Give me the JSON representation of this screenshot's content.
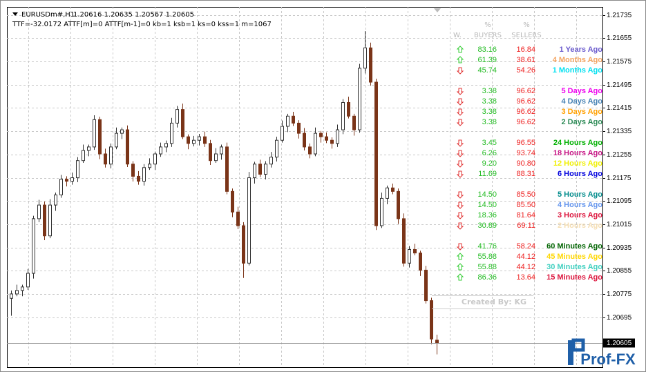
{
  "header": {
    "symbol": "EURUSDm#,H1",
    "quote": "1.20616 1.20635 1.20567 1.20605",
    "indicator": "TTF=-32.0172 ATTF[m]=0 ATTF[m-1]=0 kb=1 ksb=1 ks=0 kss=1 m=1067"
  },
  "chart_data": {
    "type": "candlestick",
    "up_color": "#303030",
    "down_color": "#7a3418",
    "grid": true,
    "ylim": [
      1.20523,
      1.21763
    ],
    "yticks": [
      1.21735,
      1.21655,
      1.21575,
      1.21495,
      1.21415,
      1.21335,
      1.21255,
      1.21175,
      1.21095,
      1.21015,
      1.20935,
      1.20855,
      1.20775,
      1.20695
    ],
    "current_price": 1.20605,
    "open": [
      1.2076,
      1.20775,
      1.20787,
      1.20799,
      1.20846,
      1.21034,
      1.21081,
      1.20975,
      1.21081,
      1.21116,
      1.2117,
      1.21163,
      1.21175,
      1.21234,
      1.21269,
      1.21281,
      1.21375,
      1.21257,
      1.21222,
      1.21281,
      1.21328,
      1.2134,
      1.21222,
      1.2118,
      1.21163,
      1.2121,
      1.21222,
      1.21257,
      1.21281,
      1.21293,
      1.21363,
      1.2141,
      1.21316,
      1.21293,
      1.21304,
      1.21316,
      1.21293,
      1.21234,
      1.21257,
      1.21281,
      1.21128,
      1.21057,
      1.2101,
      1.20881,
      1.21175,
      1.21222,
      1.21187,
      1.21222,
      1.21246,
      1.21304,
      1.21352,
      1.21387,
      1.21363,
      1.21328,
      1.21281,
      1.21257,
      1.21328,
      1.21316,
      1.21304,
      1.21293,
      1.2134,
      1.21434,
      1.21387,
      1.2134,
      1.21552,
      1.21622,
      1.21504,
      1.2101,
      1.21104,
      1.2114,
      1.21128,
      1.21034,
      1.20881,
      1.20928,
      1.20916,
      1.20857,
      1.20752,
      1.20616
    ],
    "high": [
      1.20787,
      1.20807,
      1.20807,
      1.20861,
      1.21044,
      1.21099,
      1.21093,
      1.21101,
      1.21124,
      1.21185,
      1.2118,
      1.21193,
      1.21246,
      1.21289,
      1.21289,
      1.2139,
      1.21385,
      1.21275,
      1.21293,
      1.21348,
      1.21348,
      1.21355,
      1.21232,
      1.21198,
      1.21222,
      1.21242,
      1.21265,
      1.21296,
      1.21303,
      1.21381,
      1.21422,
      1.2143,
      1.21324,
      1.21319,
      1.21326,
      1.21334,
      1.21305,
      1.21277,
      1.21289,
      1.21296,
      1.21138,
      1.21075,
      1.21022,
      1.21195,
      1.2123,
      1.21237,
      1.21232,
      1.21264,
      1.21316,
      1.21372,
      1.21395,
      1.21402,
      1.21373,
      1.21346,
      1.21293,
      1.21348,
      1.21336,
      1.21331,
      1.21314,
      1.21358,
      1.21446,
      1.21454,
      1.21395,
      1.21567,
      1.2168,
      1.2164,
      1.21516,
      1.21124,
      1.21148,
      1.21155,
      1.21138,
      1.21052,
      1.2094,
      1.20948,
      1.20924,
      1.20872,
      1.20762,
      1.20635
    ],
    "low": [
      1.207,
      1.20767,
      1.20767,
      1.20789,
      1.20828,
      1.21022,
      1.2096,
      1.20967,
      1.21061,
      1.21106,
      1.21145,
      1.21151,
      1.2116,
      1.21226,
      1.21249,
      1.21271,
      1.21239,
      1.2121,
      1.21207,
      1.21273,
      1.21308,
      1.21212,
      1.21162,
      1.21151,
      1.21148,
      1.21202,
      1.21202,
      1.21247,
      1.21263,
      1.21281,
      1.21348,
      1.21308,
      1.21273,
      1.21283,
      1.21286,
      1.21281,
      1.21219,
      1.21226,
      1.21237,
      1.21118,
      1.21039,
      1.20998,
      1.2083,
      1.20873,
      1.21155,
      1.21177,
      1.21169,
      1.2121,
      1.21231,
      1.21296,
      1.21332,
      1.21353,
      1.2131,
      1.21269,
      1.21242,
      1.21249,
      1.21296,
      1.21294,
      1.21275,
      1.21281,
      1.21325,
      1.21379,
      1.2132,
      1.2133,
      1.21534,
      1.21492,
      1.20995,
      1.21002,
      1.21084,
      1.21118,
      1.21016,
      1.20869,
      1.20866,
      1.20908,
      1.20837,
      1.20742,
      1.20602,
      1.20567
    ],
    "close": [
      1.20775,
      1.20787,
      1.20799,
      1.20846,
      1.21034,
      1.21081,
      1.20975,
      1.21081,
      1.21116,
      1.2117,
      1.21163,
      1.21175,
      1.21234,
      1.21269,
      1.21281,
      1.21375,
      1.21257,
      1.21222,
      1.21281,
      1.21328,
      1.2134,
      1.21222,
      1.2118,
      1.21163,
      1.2121,
      1.21222,
      1.21257,
      1.21281,
      1.21293,
      1.21363,
      1.2141,
      1.21316,
      1.21293,
      1.21304,
      1.21316,
      1.21293,
      1.21234,
      1.21257,
      1.21281,
      1.21128,
      1.21057,
      1.2101,
      1.20881,
      1.21175,
      1.21222,
      1.21187,
      1.21222,
      1.21246,
      1.21304,
      1.21352,
      1.21387,
      1.21363,
      1.21328,
      1.21281,
      1.21257,
      1.21328,
      1.21316,
      1.21304,
      1.21293,
      1.2134,
      1.21434,
      1.21387,
      1.2134,
      1.21552,
      1.21622,
      1.21504,
      1.2101,
      1.21104,
      1.2114,
      1.21128,
      1.21034,
      1.20881,
      1.20928,
      1.20916,
      1.20857,
      1.20752,
      1.2062,
      1.20605
    ]
  },
  "table": {
    "units": [
      "%",
      "%"
    ],
    "columns": [
      "W.",
      "BUYERS",
      "SELLERS"
    ],
    "arrow_colors": {
      "up": "#33cc33",
      "down": "#e03030"
    },
    "buyers_color": "#22bb22",
    "sellers_color": "#ee2020",
    "groups": [
      [
        {
          "dir": "up",
          "buyers": "83.16",
          "sellers": "16.84",
          "label": "1 Years Ago",
          "color": "#6a5acd"
        },
        {
          "dir": "up",
          "buyers": "61.39",
          "sellers": "38.61",
          "label": "4 Months Ago",
          "color": "#f4a460"
        },
        {
          "dir": "down",
          "buyers": "45.74",
          "sellers": "54.26",
          "label": "1 Months Ago",
          "color": "#00e0f0"
        }
      ],
      [
        {
          "dir": "down",
          "buyers": "3.38",
          "sellers": "96.62",
          "label": "5 Days Ago",
          "color": "#ee00ee"
        },
        {
          "dir": "down",
          "buyers": "3.38",
          "sellers": "96.62",
          "label": "4 Days Ago",
          "color": "#4682b4"
        },
        {
          "dir": "down",
          "buyers": "3.38",
          "sellers": "96.62",
          "label": "3 Days Ago",
          "color": "#ffa000"
        },
        {
          "dir": "down",
          "buyers": "3.38",
          "sellers": "96.62",
          "label": "2 Days Ago",
          "color": "#2e8b57"
        }
      ],
      [
        {
          "dir": "down",
          "buyers": "3.45",
          "sellers": "96.55",
          "label": "24 Hours Ago",
          "color": "#00b000"
        },
        {
          "dir": "down",
          "buyers": "6.26",
          "sellers": "93.74",
          "label": "18 Hours Ago",
          "color": "#c71585"
        },
        {
          "dir": "down",
          "buyers": "9.20",
          "sellers": "90.80",
          "label": "12 Hours Ago",
          "color": "#f0f000"
        },
        {
          "dir": "down",
          "buyers": "11.69",
          "sellers": "88.31",
          "label": "6 Hours Ago",
          "color": "#0000dd"
        }
      ],
      [
        {
          "dir": "down",
          "buyers": "14.50",
          "sellers": "85.50",
          "label": "5 Hours Ago",
          "color": "#008b8b"
        },
        {
          "dir": "down",
          "buyers": "14.50",
          "sellers": "85.50",
          "label": "4 Hours Ago",
          "color": "#6495ed"
        },
        {
          "dir": "down",
          "buyers": "18.36",
          "sellers": "81.64",
          "label": "3 Hours Ago",
          "color": "#dc143c"
        },
        {
          "dir": "down",
          "buyers": "30.89",
          "sellers": "69.11",
          "label": "2 Hours Ago",
          "color": "#f5deb3"
        }
      ],
      [
        {
          "dir": "down",
          "buyers": "41.76",
          "sellers": "58.24",
          "label": "60 Minutes Ago",
          "color": "#006400"
        },
        {
          "dir": "up",
          "buyers": "55.88",
          "sellers": "44.12",
          "label": "45 Minutes Ago",
          "color": "#ffd700"
        },
        {
          "dir": "up",
          "buyers": "55.88",
          "sellers": "44.12",
          "label": "30 Minutes Ago",
          "color": "#40d0c0"
        },
        {
          "dir": "up",
          "buyers": "86.36",
          "sellers": "13.64",
          "label": "15 Minutes Ago",
          "color": "#dc143c"
        }
      ]
    ]
  },
  "watermark": "Created By: KG",
  "logo": "Prof-FX"
}
